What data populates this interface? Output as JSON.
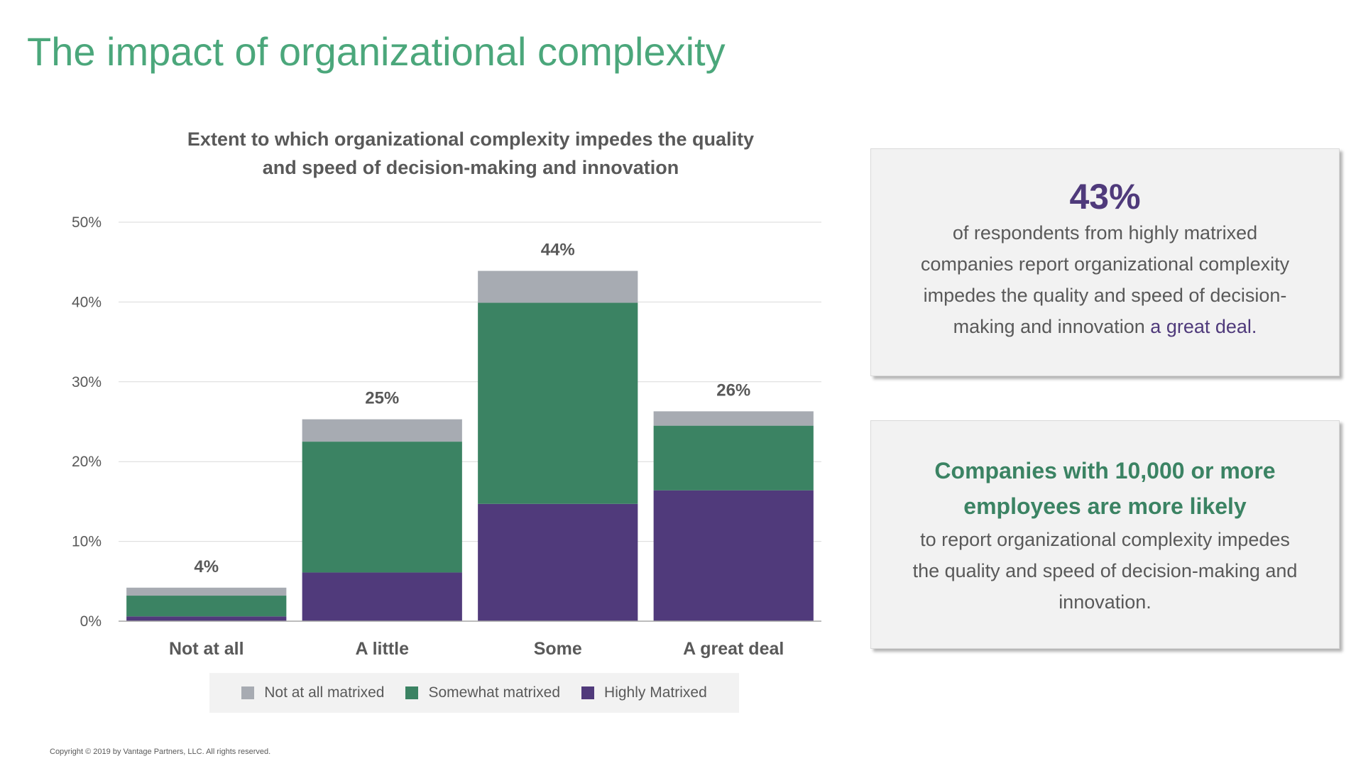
{
  "page": {
    "title": "The impact of organizational complexity"
  },
  "chart_data": {
    "type": "bar",
    "stacked": true,
    "title_lines": [
      "Extent to which organizational complexity impedes the quality",
      "and speed of decision-making and innovation"
    ],
    "categories": [
      "Not at all",
      "A little",
      "Some",
      "A great deal"
    ],
    "series": [
      {
        "name": "Highly Matrixed",
        "color": "#503a7b",
        "values": [
          0.6,
          6.1,
          14.7,
          16.4
        ]
      },
      {
        "name": "Somewhat matrixed",
        "color": "#3b8363",
        "values": [
          2.6,
          16.4,
          25.2,
          8.1
        ]
      },
      {
        "name": "Not at all matrixed",
        "color": "#a7abb2",
        "values": [
          1.0,
          2.8,
          4.0,
          1.8
        ]
      }
    ],
    "total_labels": [
      "4%",
      "25%",
      "44%",
      "26%"
    ],
    "y_ticks": [
      "0%",
      "10%",
      "20%",
      "30%",
      "40%",
      "50%"
    ],
    "ylim": [
      0,
      50
    ],
    "grid": true,
    "legend": {
      "placement": "bottom",
      "items": [
        "Not at all matrixed",
        "Somewhat matrixed",
        "Highly Matrixed"
      ]
    }
  },
  "callout1": {
    "stat": "43%",
    "lines": [
      "of respondents from highly matrixed",
      "companies report organizational complexity",
      "impedes the quality and speed of decision-"
    ],
    "last_line": "making and innovation",
    "highlight": "a great deal."
  },
  "callout2": {
    "heading_lines": [
      "Companies with 10,000 or more",
      "employees are more likely"
    ],
    "lines": [
      "to report organizational complexity impedes",
      "the quality and speed of decision-making and",
      "innovation."
    ]
  },
  "footer": {
    "copyright": "Copyright © 2019 by Vantage Partners, LLC. All rights reserved."
  }
}
